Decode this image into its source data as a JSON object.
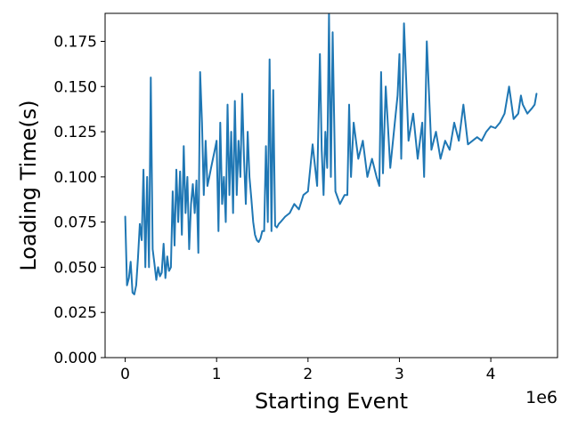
{
  "chart_data": {
    "type": "line",
    "title": "",
    "xlabel": "Starting Event",
    "ylabel": "Loading Time(s)",
    "x_offset_label": "1e6",
    "x_scale": 1000000,
    "xlim": [
      -220000,
      4730000
    ],
    "ylim": [
      0.0,
      0.1905
    ],
    "x_ticks": [
      0,
      1,
      2,
      3,
      4
    ],
    "y_ticks": [
      "0.000",
      "0.025",
      "0.050",
      "0.075",
      "0.100",
      "0.125",
      "0.150",
      "0.175"
    ],
    "grid": false,
    "legend": "none",
    "color": "#1f77b4",
    "series": [
      {
        "x": [
          0,
          20000,
          40000,
          60000,
          80000,
          100000,
          120000,
          140000,
          160000,
          180000,
          200000,
          220000,
          240000,
          260000,
          280000,
          300000,
          320000,
          340000,
          360000,
          380000,
          400000,
          420000,
          440000,
          460000,
          480000,
          500000,
          520000,
          540000,
          560000,
          580000,
          600000,
          620000,
          640000,
          660000,
          680000,
          700000,
          720000,
          740000,
          760000,
          780000,
          800000,
          820000,
          840000,
          860000,
          880000,
          900000,
          920000,
          940000,
          960000,
          980000,
          1000000,
          1020000,
          1040000,
          1060000,
          1080000,
          1100000,
          1120000,
          1140000,
          1160000,
          1180000,
          1200000,
          1220000,
          1240000,
          1260000,
          1280000,
          1300000,
          1320000,
          1340000,
          1360000,
          1380000,
          1400000,
          1420000,
          1440000,
          1460000,
          1480000,
          1500000,
          1520000,
          1540000,
          1560000,
          1580000,
          1600000,
          1620000,
          1640000,
          1660000,
          1680000,
          1700000,
          1750000,
          1800000,
          1850000,
          1900000,
          1950000,
          2000000,
          2050000,
          2100000,
          2130000,
          2150000,
          2170000,
          2190000,
          2210000,
          2230000,
          2250000,
          2270000,
          2300000,
          2350000,
          2400000,
          2430000,
          2450000,
          2470000,
          2500000,
          2550000,
          2600000,
          2650000,
          2700000,
          2750000,
          2780000,
          2800000,
          2820000,
          2850000,
          2900000,
          2950000,
          2980000,
          3000000,
          3020000,
          3050000,
          3100000,
          3150000,
          3200000,
          3250000,
          3270000,
          3300000,
          3350000,
          3400000,
          3450000,
          3500000,
          3550000,
          3600000,
          3650000,
          3700000,
          3750000,
          3800000,
          3850000,
          3900000,
          3950000,
          4000000,
          4050000,
          4100000,
          4150000,
          4200000,
          4250000,
          4300000,
          4330000,
          4350000,
          4400000,
          4450000,
          4480000,
          4500000
        ],
        "y": [
          0.078,
          0.04,
          0.044,
          0.053,
          0.036,
          0.035,
          0.04,
          0.055,
          0.074,
          0.065,
          0.104,
          0.05,
          0.1,
          0.05,
          0.155,
          0.06,
          0.052,
          0.043,
          0.05,
          0.045,
          0.047,
          0.063,
          0.044,
          0.056,
          0.048,
          0.05,
          0.092,
          0.062,
          0.104,
          0.075,
          0.103,
          0.068,
          0.117,
          0.08,
          0.1,
          0.06,
          0.085,
          0.096,
          0.08,
          0.098,
          0.058,
          0.158,
          0.13,
          0.09,
          0.12,
          0.095,
          0.1,
          0.105,
          0.11,
          0.115,
          0.12,
          0.07,
          0.13,
          0.085,
          0.1,
          0.075,
          0.14,
          0.09,
          0.125,
          0.08,
          0.142,
          0.09,
          0.12,
          0.1,
          0.146,
          0.11,
          0.085,
          0.125,
          0.1,
          0.088,
          0.075,
          0.068,
          0.065,
          0.064,
          0.066,
          0.07,
          0.07,
          0.117,
          0.075,
          0.165,
          0.07,
          0.148,
          0.073,
          0.072,
          0.074,
          0.075,
          0.078,
          0.08,
          0.085,
          0.082,
          0.09,
          0.092,
          0.118,
          0.095,
          0.168,
          0.115,
          0.09,
          0.125,
          0.105,
          0.19,
          0.1,
          0.18,
          0.092,
          0.085,
          0.09,
          0.09,
          0.14,
          0.1,
          0.13,
          0.11,
          0.12,
          0.1,
          0.11,
          0.1,
          0.095,
          0.158,
          0.102,
          0.15,
          0.105,
          0.13,
          0.145,
          0.168,
          0.11,
          0.185,
          0.12,
          0.135,
          0.11,
          0.13,
          0.1,
          0.175,
          0.115,
          0.125,
          0.11,
          0.12,
          0.115,
          0.13,
          0.12,
          0.14,
          0.118,
          0.12,
          0.122,
          0.12,
          0.125,
          0.128,
          0.127,
          0.13,
          0.135,
          0.15,
          0.132,
          0.135,
          0.145,
          0.14,
          0.135,
          0.138,
          0.14,
          0.146
        ]
      }
    ]
  }
}
